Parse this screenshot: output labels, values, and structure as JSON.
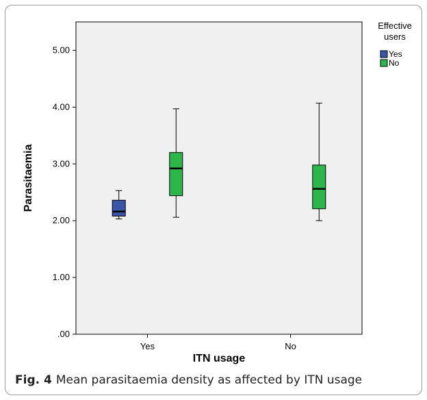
{
  "chart_data": {
    "type": "boxplot",
    "xlabel": "ITN usage",
    "ylabel": "Parasitaemia",
    "categories": [
      "Yes",
      "No"
    ],
    "ylim": [
      0,
      5.5
    ],
    "yticks": [
      ".00",
      "1.00",
      "2.00",
      "3.00",
      "4.00",
      "5.00"
    ],
    "ytick_values": [
      0,
      1,
      2,
      3,
      4,
      5
    ],
    "legend": {
      "title_line1": "Effective",
      "title_line2": "users",
      "placement": "top-right"
    },
    "series": [
      {
        "name": "Yes",
        "color": "#3a54a8",
        "boxes": [
          {
            "category": "Yes",
            "min": 2.03,
            "q1": 2.08,
            "median": 2.16,
            "q3": 2.36,
            "max": 2.53
          }
        ]
      },
      {
        "name": "No",
        "color": "#2db64a",
        "boxes": [
          {
            "category": "Yes",
            "min": 2.06,
            "q1": 2.44,
            "median": 2.92,
            "q3": 3.2,
            "max": 3.97
          },
          {
            "category": "No",
            "min": 2.0,
            "q1": 2.21,
            "median": 2.56,
            "q3": 2.98,
            "max": 4.07
          }
        ]
      }
    ]
  },
  "caption": {
    "label": "Fig. 4",
    "text": "Mean parasitaemia density as affected by ITN usage"
  }
}
